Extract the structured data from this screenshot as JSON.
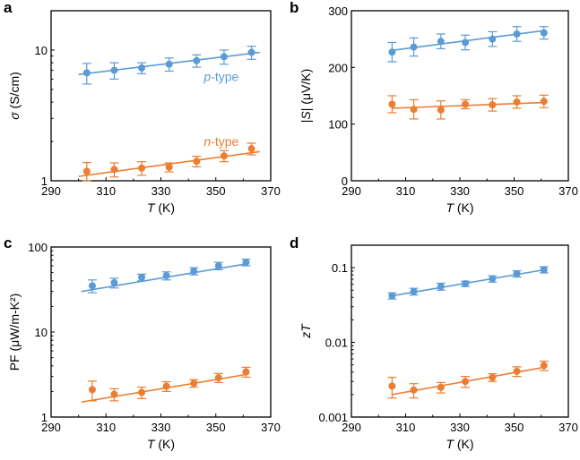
{
  "colors": {
    "p": "#5b9bd5",
    "n": "#ed7d31",
    "axis": "#000000"
  },
  "chart_data": [
    {
      "panel": "a",
      "type": "scatter",
      "yscale": "log",
      "xlabel": [
        {
          "t": "T",
          "i": true
        },
        {
          "t": " (K)",
          "i": false
        }
      ],
      "ylabel": [
        {
          "t": "σ",
          "i": true
        },
        {
          "t": " (S/cm)",
          "i": false
        }
      ],
      "xlim": [
        290,
        370
      ],
      "ylim": [
        1,
        20
      ],
      "xticks": [
        "290",
        "310",
        "330",
        "350",
        "370"
      ],
      "yticks": [
        {
          "v": 1,
          "label": "1"
        },
        {
          "v": 10,
          "label": "10"
        }
      ],
      "annotations": [
        {
          "series": "p",
          "parts": [
            {
              "t": "p",
              "i": true
            },
            {
              "t": "-type",
              "i": false
            }
          ],
          "x": 352,
          "y": 5.8
        },
        {
          "series": "n",
          "parts": [
            {
              "t": "n",
              "i": true
            },
            {
              "t": "-type",
              "i": false
            }
          ],
          "x": 352,
          "y": 1.85
        }
      ],
      "series": [
        {
          "name": "p-type",
          "key": "p",
          "x": [
            303,
            313,
            323,
            333,
            343,
            353,
            363
          ],
          "y": [
            6.7,
            7.0,
            7.3,
            7.8,
            8.3,
            8.9,
            9.6
          ],
          "err": [
            1.2,
            1.0,
            0.7,
            0.9,
            0.9,
            1.1,
            1.1
          ],
          "fit": [
            [
              300,
              6.5
            ],
            [
              366,
              9.6
            ]
          ]
        },
        {
          "name": "n-type",
          "key": "n",
          "x": [
            303,
            313,
            323,
            333,
            343,
            353,
            363
          ],
          "y": [
            1.18,
            1.22,
            1.25,
            1.27,
            1.41,
            1.55,
            1.76
          ],
          "err": [
            0.2,
            0.15,
            0.15,
            0.1,
            0.13,
            0.15,
            0.18
          ],
          "fit": [
            [
              300,
              1.08
            ],
            [
              366,
              1.67
            ]
          ]
        }
      ]
    },
    {
      "panel": "b",
      "type": "scatter",
      "yscale": "linear",
      "xlabel": [
        {
          "t": "T",
          "i": true
        },
        {
          "t": " (K)",
          "i": false
        }
      ],
      "ylabel": [
        {
          "t": "|",
          "i": false
        },
        {
          "t": "S",
          "i": true
        },
        {
          "t": "| (μV/K)",
          "i": false
        }
      ],
      "xlim": [
        290,
        370
      ],
      "ylim": [
        0,
        300
      ],
      "xticks": [
        "290",
        "310",
        "330",
        "350",
        "370"
      ],
      "yticks": [
        {
          "v": 0,
          "label": "0"
        },
        {
          "v": 100,
          "label": "100"
        },
        {
          "v": 200,
          "label": "200"
        },
        {
          "v": 300,
          "label": "300"
        }
      ],
      "annotations": [],
      "series": [
        {
          "name": "p-type",
          "key": "p",
          "x": [
            305,
            313,
            323,
            332,
            342,
            351,
            361
          ],
          "y": [
            227,
            236,
            246,
            244,
            250,
            259,
            261
          ],
          "err": [
            17,
            16,
            13,
            13,
            13,
            13,
            11
          ],
          "fit": [
            [
              305,
              230
            ],
            [
              361,
              265
            ]
          ]
        },
        {
          "name": "n-type",
          "key": "n",
          "x": [
            305,
            313,
            323,
            332,
            342,
            351,
            361
          ],
          "y": [
            135,
            126,
            125,
            135,
            134,
            139,
            140
          ],
          "err": [
            15,
            17,
            16,
            8,
            11,
            11,
            11
          ],
          "fit": [
            [
              305,
              128
            ],
            [
              361,
              138
            ]
          ]
        }
      ]
    },
    {
      "panel": "c",
      "type": "scatter",
      "yscale": "log",
      "xlabel": [
        {
          "t": "T",
          "i": true
        },
        {
          "t": " (K)",
          "i": false
        }
      ],
      "ylabel": [
        {
          "t": "PF (μW/m-K²)",
          "i": false
        }
      ],
      "xlim": [
        290,
        370
      ],
      "ylim": [
        1,
        100
      ],
      "xticks": [
        "290",
        "310",
        "330",
        "350",
        "370"
      ],
      "yticks": [
        {
          "v": 1,
          "label": "1"
        },
        {
          "v": 10,
          "label": "10"
        },
        {
          "v": 100,
          "label": "100"
        }
      ],
      "annotations": [],
      "series": [
        {
          "name": "p-type",
          "key": "p",
          "x": [
            305,
            313,
            323,
            332,
            342,
            351,
            361
          ],
          "y": [
            35,
            38,
            44,
            46,
            52,
            60,
            66
          ],
          "err": [
            6,
            5,
            4,
            5,
            5,
            6,
            6
          ],
          "fit": [
            [
              301,
              30
            ],
            [
              362,
              64
            ]
          ]
        },
        {
          "name": "n-type",
          "key": "n",
          "x": [
            305,
            313,
            323,
            332,
            342,
            351,
            361
          ],
          "y": [
            2.1,
            1.85,
            1.95,
            2.3,
            2.5,
            2.9,
            3.4
          ],
          "err": [
            0.55,
            0.3,
            0.3,
            0.3,
            0.25,
            0.35,
            0.45
          ],
          "fit": [
            [
              301,
              1.5
            ],
            [
              362,
              3.2
            ]
          ]
        }
      ]
    },
    {
      "panel": "d",
      "type": "scatter",
      "yscale": "log",
      "xlabel": [
        {
          "t": "T",
          "i": true
        },
        {
          "t": " (K)",
          "i": false
        }
      ],
      "ylabel": [
        {
          "t": "zT",
          "i": true
        }
      ],
      "xlim": [
        290,
        370
      ],
      "ylim": [
        0.001,
        0.2
      ],
      "xticks": [
        "290",
        "310",
        "330",
        "350",
        "370"
      ],
      "yticks": [
        {
          "v": 0.001,
          "label": "0.001"
        },
        {
          "v": 0.01,
          "label": "0.01"
        },
        {
          "v": 0.1,
          "label": "0.1"
        }
      ],
      "annotations": [],
      "series": [
        {
          "name": "p-type",
          "key": "p",
          "x": [
            305,
            313,
            323,
            332,
            342,
            351,
            361
          ],
          "y": [
            0.042,
            0.048,
            0.056,
            0.061,
            0.071,
            0.083,
            0.094
          ],
          "err": [
            0.004,
            0.005,
            0.006,
            0.005,
            0.007,
            0.008,
            0.009
          ],
          "fit": [
            [
              305,
              0.042
            ],
            [
              362,
              0.095
            ]
          ]
        },
        {
          "name": "n-type",
          "key": "n",
          "x": [
            305,
            313,
            323,
            332,
            342,
            351,
            361
          ],
          "y": [
            0.0026,
            0.0023,
            0.0025,
            0.003,
            0.0034,
            0.0041,
            0.0049
          ],
          "err": [
            0.0008,
            0.0005,
            0.0004,
            0.0005,
            0.0004,
            0.0006,
            0.0007
          ],
          "fit": [
            [
              305,
              0.002
            ],
            [
              362,
              0.0047
            ]
          ]
        }
      ]
    }
  ]
}
